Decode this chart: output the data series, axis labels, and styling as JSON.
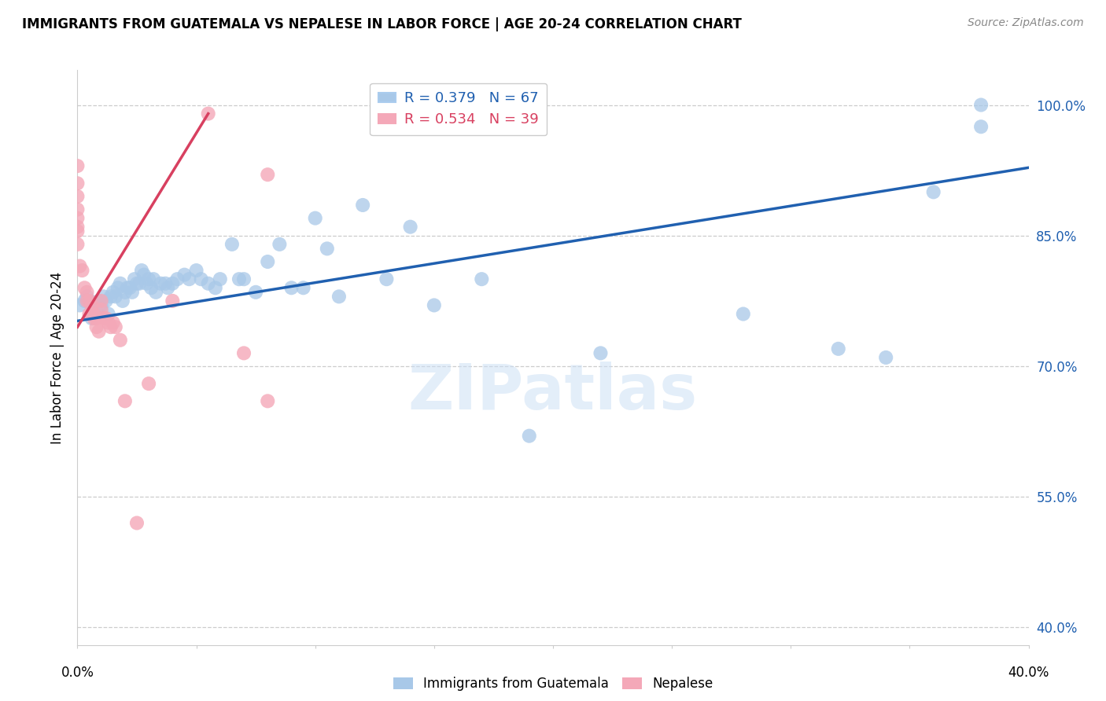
{
  "title": "IMMIGRANTS FROM GUATEMALA VS NEPALESE IN LABOR FORCE | AGE 20-24 CORRELATION CHART",
  "source": "Source: ZipAtlas.com",
  "ylabel": "In Labor Force | Age 20-24",
  "ytick_vals": [
    0.4,
    0.55,
    0.7,
    0.85,
    1.0
  ],
  "ytick_labels": [
    "40.0%",
    "55.0%",
    "70.0%",
    "85.0%",
    "100.0%"
  ],
  "xlim": [
    0.0,
    0.4
  ],
  "ylim": [
    0.38,
    1.04
  ],
  "legend_r1": "R = 0.379",
  "legend_n1": "N = 67",
  "legend_r2": "R = 0.534",
  "legend_n2": "N = 39",
  "blue_color": "#a8c8e8",
  "pink_color": "#f4a8b8",
  "blue_line_color": "#2060b0",
  "pink_line_color": "#d84060",
  "watermark": "ZIPatlas",
  "blue_scatter_x": [
    0.001,
    0.003,
    0.004,
    0.006,
    0.007,
    0.008,
    0.009,
    0.01,
    0.011,
    0.012,
    0.013,
    0.014,
    0.015,
    0.016,
    0.017,
    0.018,
    0.019,
    0.02,
    0.021,
    0.022,
    0.023,
    0.024,
    0.025,
    0.026,
    0.027,
    0.028,
    0.029,
    0.03,
    0.031,
    0.032,
    0.033,
    0.035,
    0.037,
    0.038,
    0.04,
    0.042,
    0.045,
    0.047,
    0.05,
    0.052,
    0.055,
    0.058,
    0.06,
    0.065,
    0.068,
    0.07,
    0.075,
    0.08,
    0.085,
    0.09,
    0.095,
    0.1,
    0.105,
    0.11,
    0.12,
    0.13,
    0.14,
    0.15,
    0.17,
    0.19,
    0.22,
    0.28,
    0.32,
    0.34,
    0.36,
    0.38,
    0.38
  ],
  "blue_scatter_y": [
    0.77,
    0.775,
    0.78,
    0.755,
    0.76,
    0.765,
    0.775,
    0.77,
    0.78,
    0.775,
    0.76,
    0.78,
    0.785,
    0.78,
    0.79,
    0.795,
    0.775,
    0.785,
    0.79,
    0.79,
    0.785,
    0.8,
    0.795,
    0.795,
    0.81,
    0.805,
    0.795,
    0.8,
    0.79,
    0.8,
    0.785,
    0.795,
    0.795,
    0.79,
    0.795,
    0.8,
    0.805,
    0.8,
    0.81,
    0.8,
    0.795,
    0.79,
    0.8,
    0.84,
    0.8,
    0.8,
    0.785,
    0.82,
    0.84,
    0.79,
    0.79,
    0.87,
    0.835,
    0.78,
    0.885,
    0.8,
    0.86,
    0.77,
    0.8,
    0.62,
    0.715,
    0.76,
    0.72,
    0.71,
    0.9,
    0.975,
    1.0
  ],
  "pink_scatter_x": [
    0.0,
    0.0,
    0.0,
    0.0,
    0.0,
    0.0,
    0.0,
    0.0,
    0.001,
    0.002,
    0.003,
    0.004,
    0.004,
    0.005,
    0.005,
    0.006,
    0.006,
    0.007,
    0.007,
    0.008,
    0.008,
    0.009,
    0.01,
    0.01,
    0.011,
    0.012,
    0.013,
    0.014,
    0.015,
    0.016,
    0.018,
    0.02,
    0.025,
    0.03,
    0.04,
    0.055,
    0.07,
    0.08,
    0.08
  ],
  "pink_scatter_y": [
    0.93,
    0.91,
    0.895,
    0.88,
    0.87,
    0.86,
    0.855,
    0.84,
    0.815,
    0.81,
    0.79,
    0.785,
    0.775,
    0.775,
    0.76,
    0.77,
    0.76,
    0.76,
    0.755,
    0.755,
    0.745,
    0.74,
    0.775,
    0.765,
    0.755,
    0.755,
    0.75,
    0.745,
    0.75,
    0.745,
    0.73,
    0.66,
    0.52,
    0.68,
    0.775,
    0.99,
    0.715,
    0.66,
    0.92
  ],
  "blue_trend_x": [
    0.0,
    0.4
  ],
  "blue_trend_y": [
    0.752,
    0.928
  ],
  "pink_trend_x": [
    0.0,
    0.055
  ],
  "pink_trend_y": [
    0.745,
    0.99
  ]
}
